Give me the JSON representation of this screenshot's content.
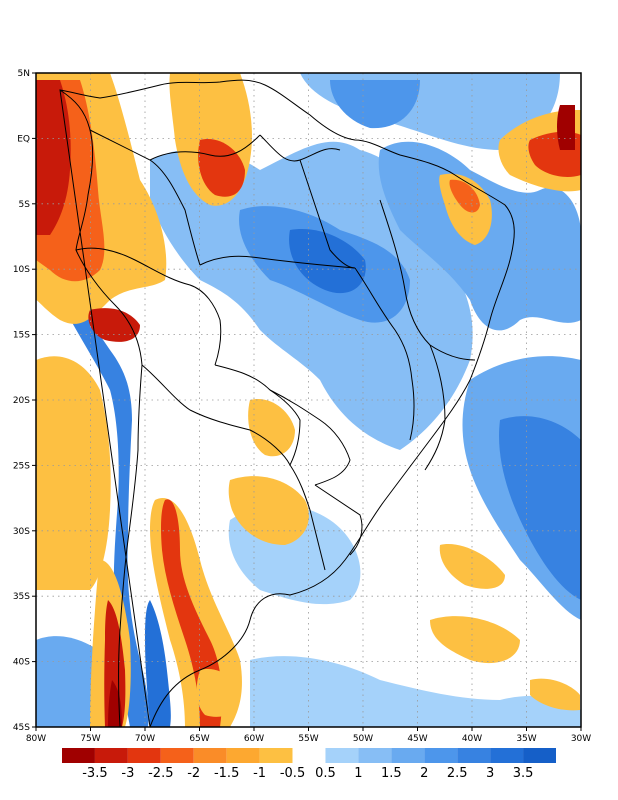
{
  "map": {
    "lon_range": [
      -80,
      -30
    ],
    "lat_range": [
      -45,
      5
    ],
    "lat_ticks": [
      {
        "value": 5,
        "label": "5N"
      },
      {
        "value": 0,
        "label": "EQ"
      },
      {
        "value": -5,
        "label": "5S"
      },
      {
        "value": -10,
        "label": "10S"
      },
      {
        "value": -15,
        "label": "15S"
      },
      {
        "value": -20,
        "label": "20S"
      },
      {
        "value": -25,
        "label": "25S"
      },
      {
        "value": -30,
        "label": "30S"
      },
      {
        "value": -35,
        "label": "35S"
      },
      {
        "value": -40,
        "label": "40S"
      },
      {
        "value": -45,
        "label": "45S"
      }
    ],
    "lon_ticks": [
      {
        "value": -80,
        "label": "80W"
      },
      {
        "value": -75,
        "label": "75W"
      },
      {
        "value": -70,
        "label": "70W"
      },
      {
        "value": -65,
        "label": "65W"
      },
      {
        "value": -60,
        "label": "60W"
      },
      {
        "value": -55,
        "label": "55W"
      },
      {
        "value": -50,
        "label": "50W"
      },
      {
        "value": -45,
        "label": "45W"
      },
      {
        "value": -40,
        "label": "40W"
      },
      {
        "value": -35,
        "label": "35W"
      },
      {
        "value": -30,
        "label": "30W"
      }
    ],
    "grid": "dotted"
  },
  "colorbar": {
    "boxes": [
      {
        "color": "#a00000"
      },
      {
        "color": "#c81a0a"
      },
      {
        "color": "#e3360f"
      },
      {
        "color": "#f5611a"
      },
      {
        "color": "#fa8c28"
      },
      {
        "color": "#fda830"
      },
      {
        "color": "#fdc042"
      },
      {
        "color": "#ffffff"
      },
      {
        "color": "#a5d2fa"
      },
      {
        "color": "#87bef5"
      },
      {
        "color": "#69aaf0"
      },
      {
        "color": "#4d96eb"
      },
      {
        "color": "#3782e1"
      },
      {
        "color": "#2370d7"
      },
      {
        "color": "#155fc8"
      }
    ],
    "labels": [
      "-3.5",
      "-3",
      "-2.5",
      "-2",
      "-1.5",
      "-1",
      "-0.5",
      "0.5",
      "1",
      "1.5",
      "2",
      "2.5",
      "3",
      "3.5"
    ]
  },
  "colors": {
    "neg_strong": "#a00000",
    "neg_mid": "#e3360f",
    "neg_weak": "#fdc042",
    "pos_weak": "#a5d2fa",
    "pos_mid": "#4d96eb",
    "pos_strong": "#155fc8",
    "coast": "#000000"
  }
}
